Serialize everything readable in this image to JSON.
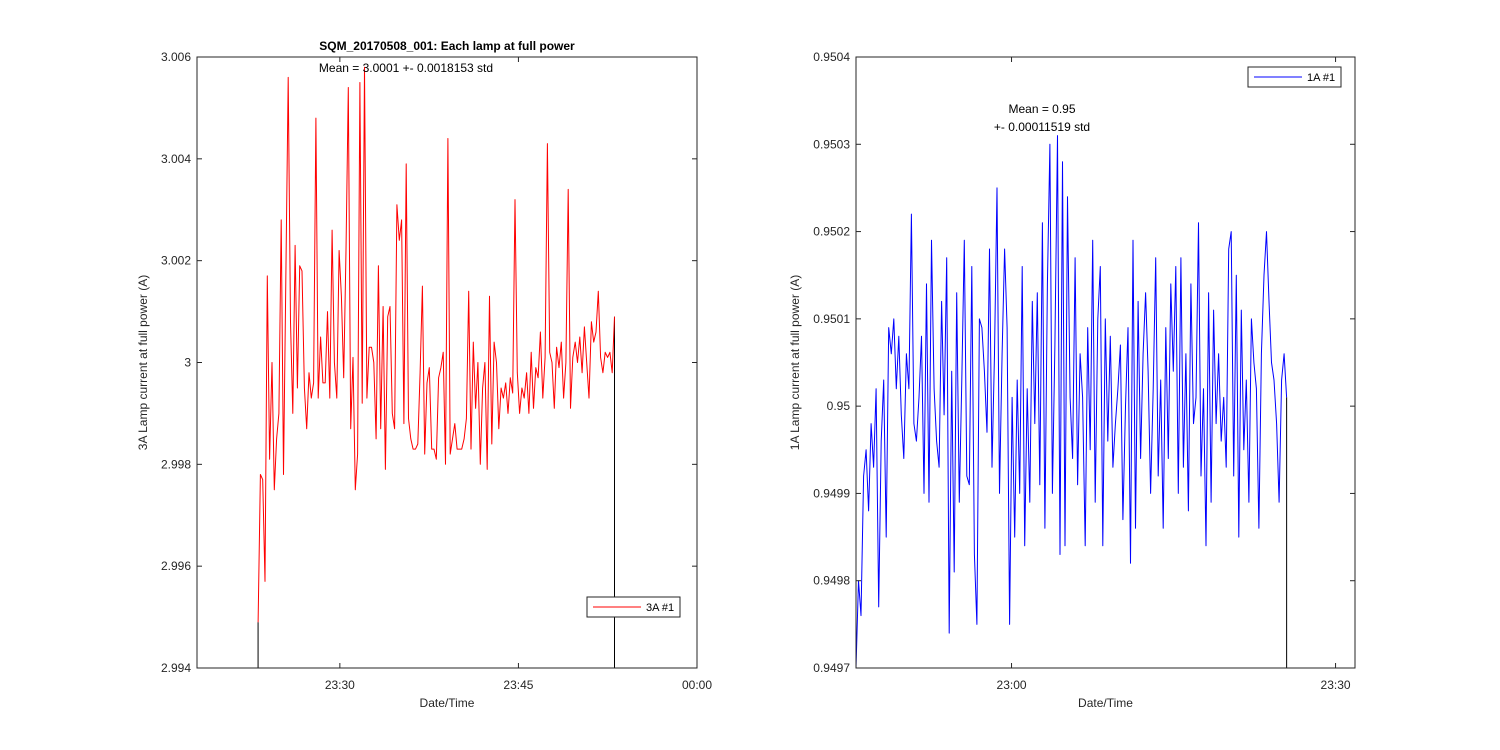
{
  "chart_data": [
    {
      "type": "line",
      "title": "SQM_20170508_001: Each lamp at full power",
      "xlabel": "Date/Time",
      "ylabel": "3A Lamp current at full power (A)",
      "xlim": [
        23.3,
        24.0
      ],
      "ylim": [
        2.994,
        3.006
      ],
      "xticks": [
        23.5,
        23.75,
        24.0
      ],
      "xtick_labels": [
        "23:30",
        "23:45",
        "00:00"
      ],
      "yticks": [
        2.994,
        2.996,
        2.998,
        3.0,
        3.002,
        3.004,
        3.006
      ],
      "ytick_labels": [
        "2.994",
        "2.996",
        "2.998",
        "3",
        "3.002",
        "3.004",
        "3.006"
      ],
      "annotations": [
        "Mean = 3.0001 +- 0.0018153 std"
      ],
      "legend": {
        "label": "3A #1",
        "location": "bottom-right"
      },
      "series": [
        {
          "name": "3A #1",
          "color": "#ff0000",
          "x_start": 23.3855,
          "x_end": 23.8845,
          "values": [
            2.9949,
            2.9978,
            2.9977,
            2.9957,
            3.0017,
            2.9981,
            3.0,
            2.9975,
            2.9985,
            2.999,
            3.0028,
            2.9978,
            3.0016,
            3.0056,
            3.0008,
            2.999,
            3.0023,
            2.9995,
            3.0019,
            3.0018,
            2.9995,
            2.9987,
            2.9998,
            2.9993,
            2.9996,
            3.0048,
            2.9993,
            3.0005,
            2.9996,
            2.9996,
            3.001,
            2.9993,
            3.0026,
            3.0,
            2.9993,
            3.0022,
            3.0013,
            2.9997,
            3.0022,
            3.0054,
            2.9987,
            3.0001,
            2.9975,
            2.9982,
            3.0055,
            2.9992,
            3.0058,
            2.9993,
            3.0003,
            3.0003,
            3.0,
            2.9985,
            3.0019,
            2.9987,
            3.0011,
            2.9979,
            3.0009,
            3.0011,
            2.999,
            2.9987,
            3.0031,
            3.0024,
            3.0028,
            2.9988,
            3.0039,
            2.9989,
            2.9985,
            2.9983,
            2.9983,
            2.9984,
            2.9998,
            3.0015,
            2.9982,
            2.9996,
            2.9999,
            2.9983,
            2.9983,
            2.9981,
            2.9997,
            2.9999,
            3.0002,
            2.998,
            3.0044,
            2.9982,
            2.9985,
            2.9988,
            2.9983,
            2.9983,
            2.9983,
            2.9985,
            2.9989,
            3.0014,
            2.9983,
            3.0004,
            2.9991,
            3.0,
            2.998,
            2.9995,
            3.0,
            2.9979,
            3.0013,
            2.9984,
            3.0004,
            3.0,
            2.9987,
            2.9995,
            2.9993,
            2.9996,
            2.999,
            2.9997,
            2.9994,
            3.0032,
            2.9998,
            2.999,
            2.9995,
            2.9993,
            2.9998,
            2.999,
            3.0002,
            2.9991,
            2.9999,
            2.9997,
            3.0006,
            2.9993,
            3.0001,
            3.0043,
            3.0002,
            3.0,
            2.9991,
            3.0003,
            2.9999,
            3.0004,
            2.9993,
            3.0,
            3.0034,
            2.9991,
            3.0001,
            3.0004,
            3.0,
            3.0005,
            2.9998,
            3.0007,
            3.0,
            2.9993,
            3.0008,
            3.0004,
            3.0006,
            3.0014,
            3.0001,
            2.9998,
            3.0002,
            3.0001,
            3.0002,
            2.9998,
            3.0009
          ],
          "drop_to": 2.994
        }
      ]
    },
    {
      "type": "line",
      "title": "",
      "xlabel": "Date/Time",
      "ylabel": "1A Lamp current at full power (A)",
      "xlim": [
        22.76,
        23.53
      ],
      "ylim": [
        0.9497,
        0.9504
      ],
      "xticks": [
        23.0,
        23.5
      ],
      "xtick_labels": [
        "23:00",
        "23:30"
      ],
      "yticks": [
        0.9497,
        0.9498,
        0.9499,
        0.95,
        0.9501,
        0.9502,
        0.9503,
        0.9504
      ],
      "ytick_labels": [
        "0.9497",
        "0.9498",
        "0.9499",
        "0.95",
        "0.9501",
        "0.9502",
        "0.9503",
        "0.9504"
      ],
      "annotations": [
        "Mean = 0.95",
        "+- 0.00011519 std"
      ],
      "legend": {
        "label": "1A #1",
        "location": "top-right"
      },
      "series": [
        {
          "name": "1A #1",
          "color": "#0000ff",
          "x_start": 22.76,
          "x_end": 23.4245,
          "values": [
            0.9497,
            0.9498,
            0.94976,
            0.94992,
            0.94995,
            0.94988,
            0.94998,
            0.94993,
            0.95002,
            0.94977,
            0.94996,
            0.95003,
            0.94985,
            0.95009,
            0.95006,
            0.9501,
            0.95002,
            0.95008,
            0.94999,
            0.94994,
            0.95006,
            0.95002,
            0.95022,
            0.94998,
            0.94996,
            0.95001,
            0.95008,
            0.9499,
            0.95014,
            0.94989,
            0.95019,
            0.95002,
            0.94996,
            0.94993,
            0.95012,
            0.94999,
            0.95017,
            0.94974,
            0.95004,
            0.94981,
            0.95013,
            0.94989,
            0.95003,
            0.95019,
            0.94992,
            0.94991,
            0.95016,
            0.94983,
            0.94975,
            0.9501,
            0.95009,
            0.95004,
            0.94997,
            0.95018,
            0.94993,
            0.95006,
            0.95025,
            0.9499,
            0.95006,
            0.95018,
            0.95009,
            0.94975,
            0.95001,
            0.94985,
            0.95003,
            0.9499,
            0.95016,
            0.94984,
            0.95002,
            0.94989,
            0.95012,
            0.94998,
            0.95013,
            0.94991,
            0.95021,
            0.94986,
            0.95014,
            0.9503,
            0.9499,
            0.95007,
            0.95031,
            0.94983,
            0.95028,
            0.94984,
            0.95024,
            0.95001,
            0.94994,
            0.95017,
            0.94991,
            0.95006,
            0.95001,
            0.94984,
            0.95009,
            0.94995,
            0.95019,
            0.94989,
            0.9501,
            0.95016,
            0.94984,
            0.9501,
            0.94996,
            0.95008,
            0.94993,
            0.94998,
            0.95002,
            0.95007,
            0.94987,
            0.95,
            0.95009,
            0.94982,
            0.95019,
            0.94986,
            0.95012,
            0.94994,
            0.95006,
            0.95013,
            0.95004,
            0.9499,
            0.95002,
            0.95017,
            0.94992,
            0.95003,
            0.94986,
            0.95009,
            0.94994,
            0.95014,
            0.95004,
            0.95016,
            0.9499,
            0.95017,
            0.94993,
            0.95006,
            0.94988,
            0.95014,
            0.94998,
            0.95001,
            0.95021,
            0.94992,
            0.95002,
            0.94984,
            0.95013,
            0.94989,
            0.95011,
            0.94998,
            0.95006,
            0.94996,
            0.95001,
            0.94993,
            0.95018,
            0.9502,
            0.94992,
            0.95015,
            0.94985,
            0.95011,
            0.94995,
            0.95003,
            0.94989,
            0.9501,
            0.95005,
            0.95002,
            0.94986,
            0.95006,
            0.95015,
            0.9502,
            0.95012,
            0.95005,
            0.95003,
            0.94998,
            0.94989,
            0.95003,
            0.95006,
            0.95001
          ],
          "drop_to": 0.9497
        }
      ]
    }
  ]
}
